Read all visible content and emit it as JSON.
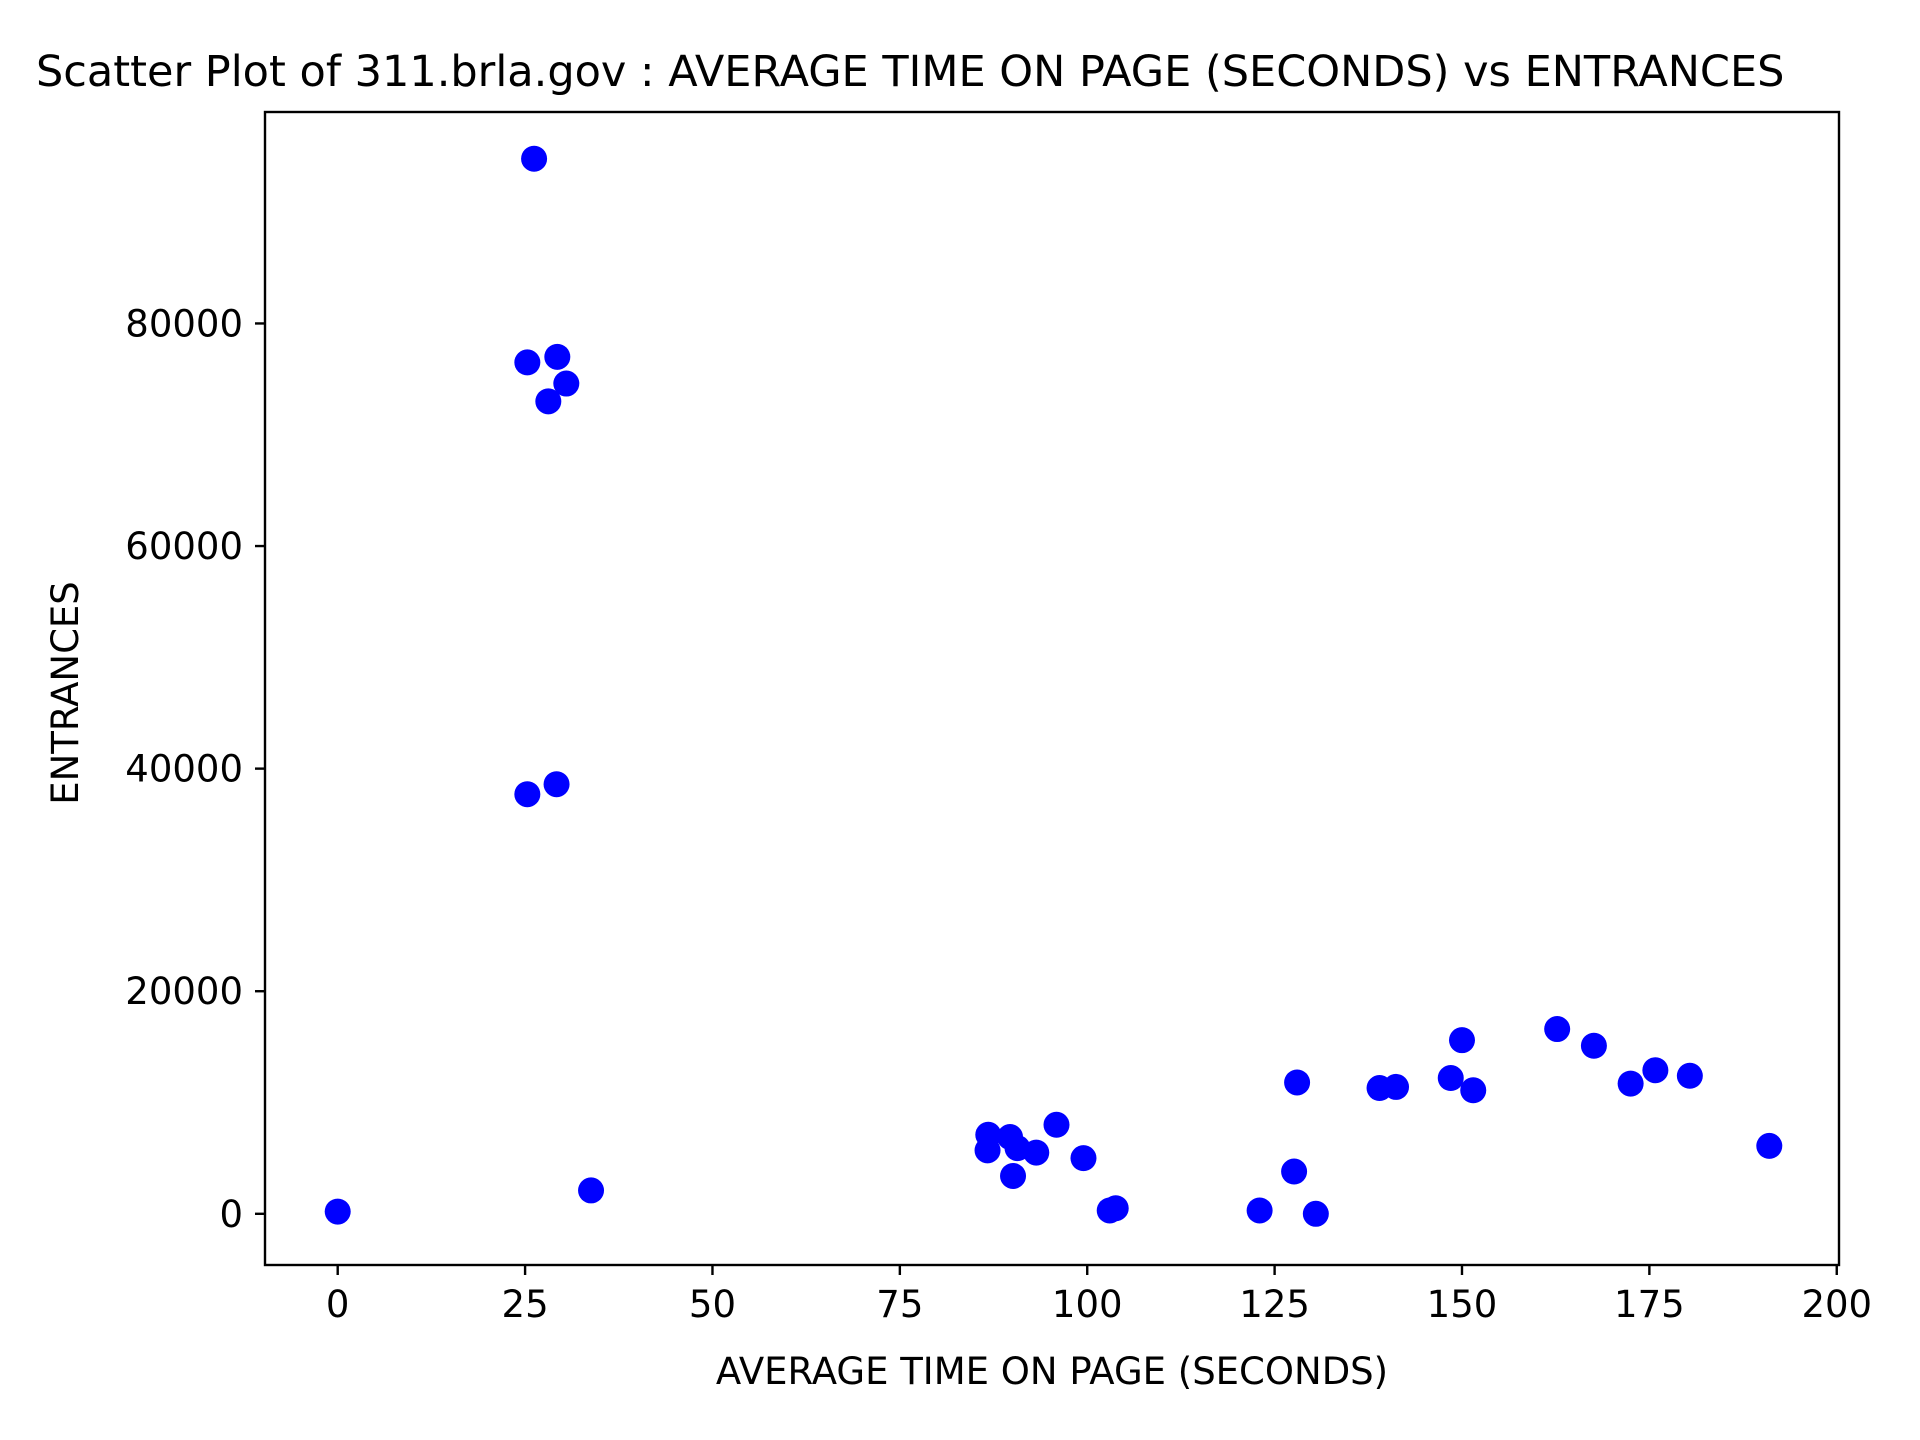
{
  "chart_data": {
    "type": "scatter",
    "title": "Scatter Plot of 311.brla.gov : AVERAGE TIME ON PAGE (SECONDS) vs ENTRANCES",
    "xlabel": "AVERAGE TIME ON PAGE (SECONDS)",
    "ylabel": "ENTRANCES",
    "xlim": [
      -9.7,
      200.3
    ],
    "ylim": [
      -4600,
      99000
    ],
    "xticks": [
      0,
      25,
      50,
      75,
      100,
      125,
      150,
      175,
      200
    ],
    "xtick_labels": [
      "0",
      "25",
      "50",
      "75",
      "100",
      "125",
      "150",
      "175",
      "200"
    ],
    "yticks": [
      0,
      20000,
      40000,
      60000,
      80000
    ],
    "ytick_labels": [
      "0",
      "20000",
      "40000",
      "60000",
      "80000"
    ],
    "grid": false,
    "marker_color": "#0000ff",
    "points": [
      {
        "x": 0,
        "y": 200
      },
      {
        "x": 25.3,
        "y": 37700
      },
      {
        "x": 25.3,
        "y": 76500
      },
      {
        "x": 26.2,
        "y": 94800
      },
      {
        "x": 28.1,
        "y": 73000
      },
      {
        "x": 29.2,
        "y": 38600
      },
      {
        "x": 29.3,
        "y": 77000
      },
      {
        "x": 30.5,
        "y": 74600
      },
      {
        "x": 33.8,
        "y": 2100
      },
      {
        "x": 86.7,
        "y": 5700
      },
      {
        "x": 86.8,
        "y": 7100
      },
      {
        "x": 89.7,
        "y": 6900
      },
      {
        "x": 90.1,
        "y": 3400
      },
      {
        "x": 90.7,
        "y": 5900
      },
      {
        "x": 93.2,
        "y": 5500
      },
      {
        "x": 95.9,
        "y": 8000
      },
      {
        "x": 99.5,
        "y": 5000
      },
      {
        "x": 103.0,
        "y": 300
      },
      {
        "x": 103.8,
        "y": 500
      },
      {
        "x": 123.0,
        "y": 300
      },
      {
        "x": 127.6,
        "y": 3800
      },
      {
        "x": 128.0,
        "y": 11800
      },
      {
        "x": 130.5,
        "y": 0
      },
      {
        "x": 139.0,
        "y": 11300
      },
      {
        "x": 141.2,
        "y": 11400
      },
      {
        "x": 148.5,
        "y": 12200
      },
      {
        "x": 150.0,
        "y": 15600
      },
      {
        "x": 151.5,
        "y": 11100
      },
      {
        "x": 162.7,
        "y": 16600
      },
      {
        "x": 167.6,
        "y": 15100
      },
      {
        "x": 172.5,
        "y": 11700
      },
      {
        "x": 175.8,
        "y": 12900
      },
      {
        "x": 180.4,
        "y": 12400
      },
      {
        "x": 191.0,
        "y": 6100
      }
    ]
  }
}
